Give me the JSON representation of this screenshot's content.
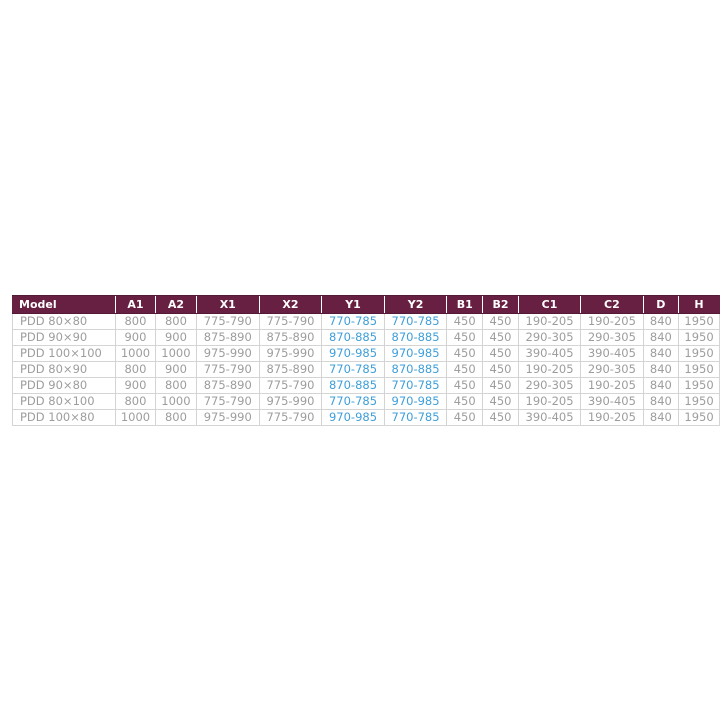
{
  "page": {
    "background": "#ffffff"
  },
  "table": {
    "columns": [
      {
        "key": "model",
        "label": "Model",
        "accent": false
      },
      {
        "key": "a1",
        "label": "A1",
        "accent": false
      },
      {
        "key": "a2",
        "label": "A2",
        "accent": false
      },
      {
        "key": "x1",
        "label": "X1",
        "accent": false
      },
      {
        "key": "x2",
        "label": "X2",
        "accent": false
      },
      {
        "key": "y1",
        "label": "Y1",
        "accent": true
      },
      {
        "key": "y2",
        "label": "Y2",
        "accent": true
      },
      {
        "key": "b1",
        "label": "B1",
        "accent": false
      },
      {
        "key": "b2",
        "label": "B2",
        "accent": false
      },
      {
        "key": "c1",
        "label": "C1",
        "accent": false
      },
      {
        "key": "c2",
        "label": "C2",
        "accent": false
      },
      {
        "key": "d",
        "label": "D",
        "accent": false
      },
      {
        "key": "h",
        "label": "H",
        "accent": false
      }
    ],
    "rows": [
      [
        "PDD 80×80",
        "800",
        "800",
        "775-790",
        "775-790",
        "770-785",
        "770-785",
        "450",
        "450",
        "190-205",
        "190-205",
        "840",
        "1950"
      ],
      [
        "PDD 90×90",
        "900",
        "900",
        "875-890",
        "875-890",
        "870-885",
        "870-885",
        "450",
        "450",
        "290-305",
        "290-305",
        "840",
        "1950"
      ],
      [
        "PDD 100×100",
        "1000",
        "1000",
        "975-990",
        "975-990",
        "970-985",
        "970-985",
        "450",
        "450",
        "390-405",
        "390-405",
        "840",
        "1950"
      ],
      [
        "PDD 80×90",
        "800",
        "900",
        "775-790",
        "875-890",
        "770-785",
        "870-885",
        "450",
        "450",
        "190-205",
        "290-305",
        "840",
        "1950"
      ],
      [
        "PDD 90×80",
        "900",
        "800",
        "875-890",
        "775-790",
        "870-885",
        "770-785",
        "450",
        "450",
        "290-305",
        "190-205",
        "840",
        "1950"
      ],
      [
        "PDD 80×100",
        "800",
        "1000",
        "775-790",
        "975-990",
        "770-785",
        "970-985",
        "450",
        "450",
        "190-205",
        "390-405",
        "840",
        "1950"
      ],
      [
        "PDD 100×80",
        "1000",
        "800",
        "975-990",
        "775-790",
        "970-985",
        "770-785",
        "450",
        "450",
        "390-405",
        "190-205",
        "840",
        "1950"
      ]
    ],
    "colors": {
      "header_background": "#682042",
      "header_text": "#ffffff",
      "body_text": "#9d9d9d",
      "accent_text": "#3e9fd9",
      "grid_border": "#d4d4d4"
    }
  }
}
